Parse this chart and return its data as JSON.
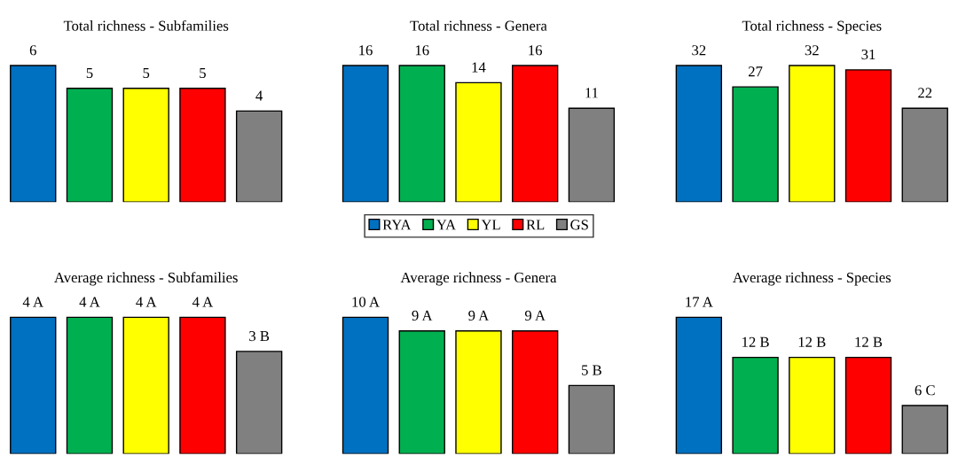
{
  "chart_data": [
    {
      "type": "bar",
      "title": "Total richness - Subfamilies",
      "categories": [
        null
      ],
      "data_labels": true,
      "legend": "bottom",
      "series": [
        {
          "name": "RYA",
          "color": "#0070c0",
          "values": [
            6
          ]
        },
        {
          "name": "YA",
          "color": "#00b050",
          "values": [
            5
          ]
        },
        {
          "name": "YL",
          "color": "#ffff00",
          "values": [
            5
          ]
        },
        {
          "name": "RL",
          "color": "#ff0000",
          "values": [
            5
          ]
        },
        {
          "name": "GS",
          "color": "#808080",
          "values": [
            4
          ]
        }
      ]
    },
    {
      "type": "bar",
      "title": "Total richness - Genera",
      "categories": [
        null
      ],
      "data_labels": true,
      "series": [
        {
          "color": "#0070c0",
          "values": [
            16
          ]
        },
        {
          "color": "#00b050",
          "values": [
            16
          ]
        },
        {
          "color": "#ffff00",
          "values": [
            14
          ]
        },
        {
          "color": "#ff0000",
          "values": [
            16
          ]
        },
        {
          "color": "#808080",
          "values": [
            11
          ]
        }
      ]
    },
    {
      "type": "bar",
      "title": "Total richness - Species",
      "categories": [
        null
      ],
      "data_labels": true,
      "series": [
        {
          "color": "#0070c0",
          "values": [
            32
          ]
        },
        {
          "color": "#00b050",
          "values": [
            27
          ]
        },
        {
          "color": "#ffff00",
          "values": [
            32
          ]
        },
        {
          "color": "#ff0000",
          "values": [
            31
          ]
        },
        {
          "color": "#808080",
          "values": [
            22
          ]
        }
      ]
    },
    {
      "type": "bar",
      "title": "Average richness - Subfamilies",
      "categories": [
        null
      ],
      "series": [
        {
          "color": "#0070c0",
          "values": [
            4
          ],
          "value_labels": [
            "4 A"
          ]
        },
        {
          "color": "#00b050",
          "values": [
            4
          ],
          "value_labels": [
            "4 A"
          ]
        },
        {
          "color": "#ffff00",
          "values": [
            4
          ],
          "value_labels": [
            "4 A"
          ]
        },
        {
          "color": "#ff0000",
          "values": [
            4
          ],
          "value_labels": [
            "4 A"
          ]
        },
        {
          "color": "#808080",
          "values": [
            3
          ],
          "value_labels": [
            "3 B"
          ]
        }
      ]
    },
    {
      "type": "bar",
      "title": "Average richness - Genera",
      "categories": [
        null
      ],
      "series": [
        {
          "color": "#0070c0",
          "values": [
            10
          ],
          "value_labels": [
            "10 A"
          ]
        },
        {
          "color": "#00b050",
          "values": [
            9
          ],
          "value_labels": [
            "9 A"
          ]
        },
        {
          "color": "#ffff00",
          "values": [
            9
          ],
          "value_labels": [
            "9 A"
          ]
        },
        {
          "color": "#ff0000",
          "values": [
            9
          ],
          "value_labels": [
            "9 A"
          ]
        },
        {
          "color": "#808080",
          "values": [
            5
          ],
          "value_labels": [
            "5 B"
          ]
        }
      ]
    },
    {
      "type": "bar",
      "title": "Average richness - Species",
      "categories": [
        null
      ],
      "series": [
        {
          "color": "#0070c0",
          "values": [
            17
          ],
          "value_labels": [
            "17 A"
          ]
        },
        {
          "color": "#00b050",
          "values": [
            12
          ],
          "value_labels": [
            "12 B"
          ]
        },
        {
          "color": "#ffff00",
          "values": [
            12
          ],
          "value_labels": [
            "12 B"
          ]
        },
        {
          "color": "#ff0000",
          "values": [
            12
          ],
          "value_labels": [
            "12 B"
          ]
        },
        {
          "color": "#808080",
          "values": [
            6
          ],
          "value_labels": [
            "6 C"
          ]
        }
      ]
    }
  ]
}
